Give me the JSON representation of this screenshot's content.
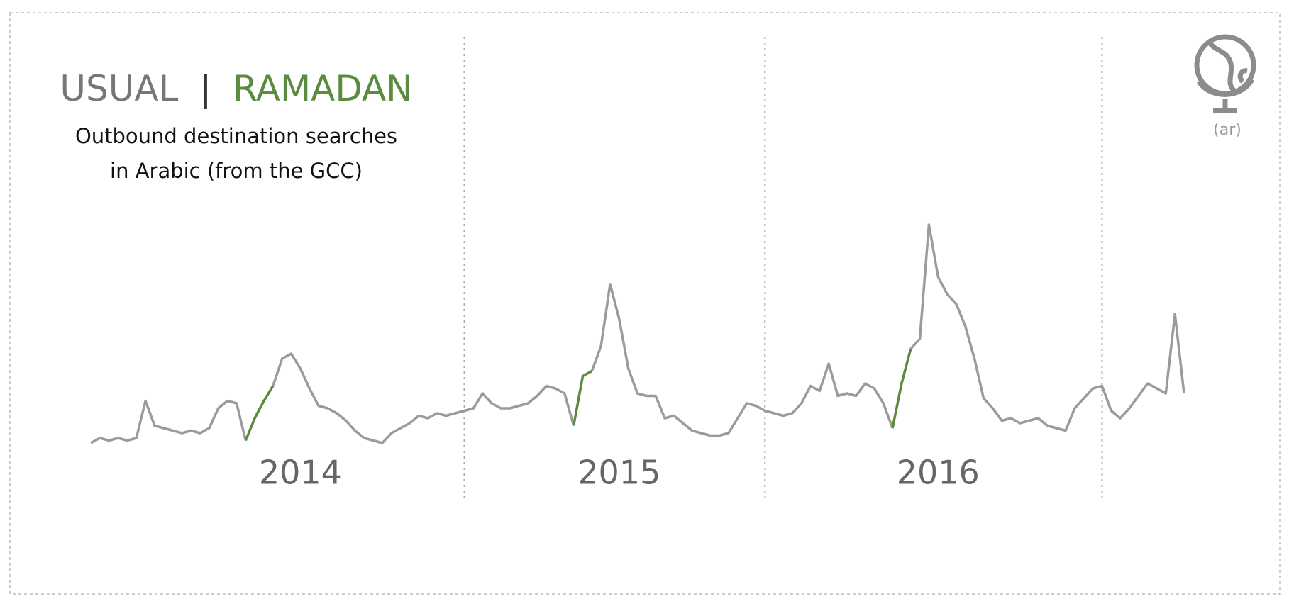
{
  "chart_data": {
    "type": "line",
    "subtitle": [
      "Outbound destination searches",
      "in Arabic (from the GCC)"
    ],
    "legend_separator": "|",
    "language": "(ar)",
    "categories": [
      null,
      null,
      null,
      null,
      null,
      null,
      null,
      null,
      null,
      null,
      null,
      null,
      null,
      null,
      null,
      null,
      null,
      null,
      null,
      null,
      null,
      null,
      null,
      "2014",
      null,
      null,
      null,
      null,
      null,
      null,
      null,
      null,
      null,
      null,
      null,
      null,
      null,
      null,
      null,
      null,
      null,
      null,
      null,
      null,
      null,
      null,
      null,
      null,
      null,
      null,
      null,
      null,
      null,
      null,
      null,
      null,
      null,
      null,
      "2015",
      null,
      null,
      null,
      null,
      null,
      null,
      null,
      null,
      null,
      null,
      null,
      null,
      null,
      null,
      null,
      null,
      null,
      null,
      null,
      null,
      null,
      null,
      null,
      null,
      null,
      null,
      null,
      null,
      null,
      null,
      null,
      null,
      null,
      null,
      "2016",
      null,
      null,
      null,
      null,
      null,
      null,
      null,
      null,
      null,
      null,
      null,
      null,
      null,
      null,
      null,
      null,
      null,
      null,
      null,
      null,
      null,
      null,
      null,
      null,
      null,
      null,
      null
    ],
    "dividers": [
      41,
      74,
      111
    ],
    "ylim": [
      0,
      100
    ],
    "series": [
      {
        "name": "USUAL",
        "color": "#9b9b9b",
        "values": [
          8,
          10,
          9,
          10,
          9,
          10,
          25,
          15,
          14,
          13,
          12,
          13,
          12,
          14,
          22,
          25,
          24,
          9,
          null,
          null,
          31,
          42,
          44,
          38,
          30,
          23,
          22,
          20,
          17,
          13,
          10,
          9,
          8,
          12,
          14,
          16,
          19,
          18,
          20,
          19,
          20,
          21,
          22,
          28,
          24,
          22,
          22,
          23,
          24,
          27,
          31,
          30,
          28,
          15,
          null,
          37,
          47,
          72,
          58,
          38,
          28,
          27,
          27,
          18,
          19,
          16,
          13,
          12,
          11,
          11,
          12,
          18,
          24,
          23,
          21,
          20,
          19,
          20,
          24,
          31,
          29,
          40,
          27,
          28,
          27,
          32,
          30,
          24,
          14,
          null,
          46,
          50,
          96,
          75,
          68,
          64,
          55,
          42,
          26,
          22,
          17,
          18,
          16,
          17,
          18,
          15,
          14,
          13,
          22,
          26,
          30,
          31,
          21,
          18,
          22,
          27,
          32,
          30,
          28,
          60,
          28
        ]
      },
      {
        "name": "RAMADAN",
        "color": "#5b8c3e",
        "values": [
          null,
          null,
          null,
          null,
          null,
          null,
          null,
          null,
          null,
          null,
          null,
          null,
          null,
          null,
          null,
          null,
          null,
          9,
          18,
          25,
          31,
          null,
          null,
          null,
          null,
          null,
          null,
          null,
          null,
          null,
          null,
          null,
          null,
          null,
          null,
          null,
          null,
          null,
          null,
          null,
          null,
          null,
          null,
          null,
          null,
          null,
          null,
          null,
          null,
          null,
          null,
          null,
          null,
          15,
          35,
          37,
          null,
          null,
          null,
          null,
          null,
          null,
          null,
          null,
          null,
          null,
          null,
          null,
          null,
          null,
          null,
          null,
          null,
          null,
          null,
          null,
          null,
          null,
          null,
          null,
          null,
          null,
          null,
          null,
          null,
          null,
          null,
          null,
          14,
          32,
          46,
          null,
          null,
          null,
          null,
          null,
          null,
          null,
          null,
          null,
          null,
          null,
          null,
          null,
          null,
          null,
          null,
          null,
          null,
          null,
          null,
          null,
          null,
          null,
          null,
          null,
          null,
          null,
          null,
          null,
          null
        ]
      }
    ]
  }
}
